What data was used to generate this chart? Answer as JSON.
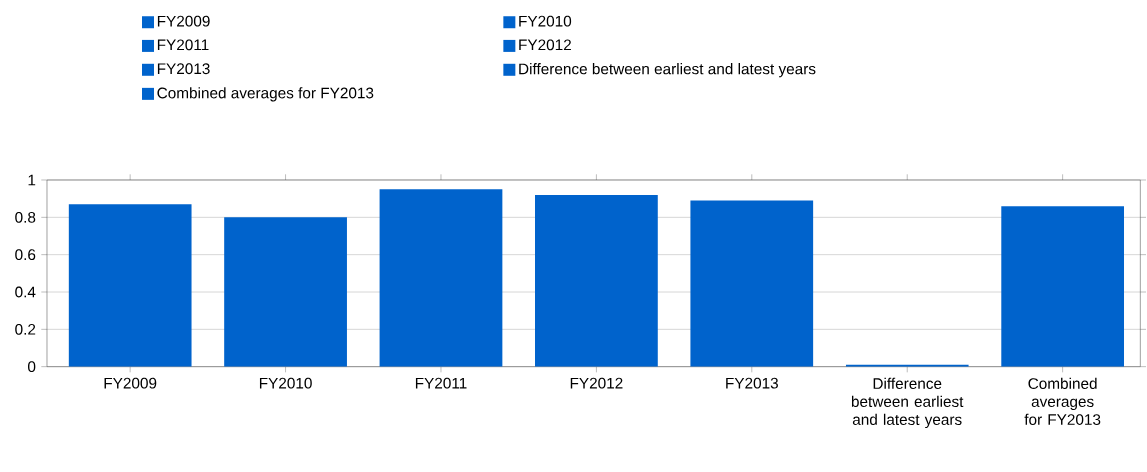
{
  "chart_data": {
    "type": "bar",
    "categories": [
      "FY2009",
      "FY2010",
      "FY2011",
      "FY2012",
      "FY2013",
      "Difference between earliest and latest years",
      "Combined averages for FY2013"
    ],
    "series": [
      {
        "name": "FY2009",
        "color": "#0063cc",
        "values": [
          0.87,
          null,
          null,
          null,
          null,
          null,
          null
        ]
      },
      {
        "name": "FY2010",
        "color": "#0063cc",
        "values": [
          null,
          0.8,
          null,
          null,
          null,
          null,
          null
        ]
      },
      {
        "name": "FY2011",
        "color": "#0063cc",
        "values": [
          null,
          null,
          0.95,
          null,
          null,
          null,
          null
        ]
      },
      {
        "name": "FY2012",
        "color": "#0063cc",
        "values": [
          null,
          null,
          null,
          0.92,
          null,
          null,
          null
        ]
      },
      {
        "name": "FY2013",
        "color": "#0063cc",
        "values": [
          null,
          null,
          null,
          null,
          0.89,
          null,
          null
        ]
      },
      {
        "name": "Difference between earliest and latest years",
        "color": "#0063cc",
        "values": [
          null,
          null,
          null,
          null,
          null,
          0.01,
          null
        ]
      },
      {
        "name": "Combined averages for FY2013",
        "color": "#0063cc",
        "values": [
          null,
          null,
          null,
          null,
          null,
          null,
          0.86
        ]
      }
    ],
    "ylim": [
      0,
      1
    ],
    "yticks": [
      0,
      0.2,
      0.4,
      0.6,
      0.8,
      1
    ],
    "grid": "y",
    "legend": "top"
  }
}
